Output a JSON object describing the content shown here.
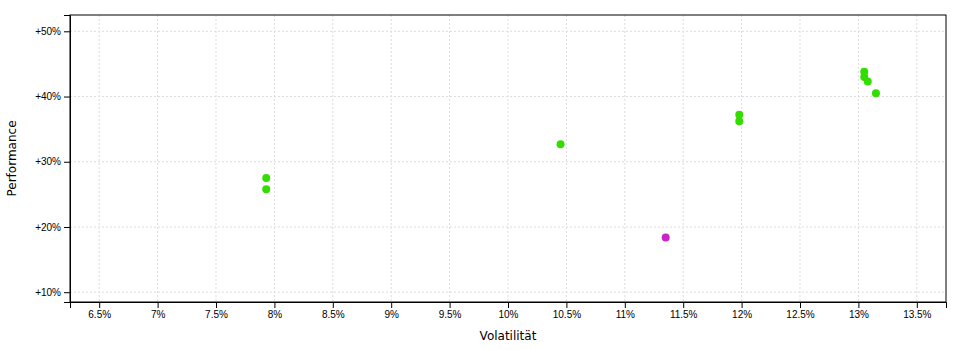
{
  "chart_data": {
    "type": "scatter",
    "xlabel": "Volatilität",
    "ylabel": "Performance",
    "xlim": [
      0.0625,
      0.1375
    ],
    "ylim": [
      0.085,
      0.525
    ],
    "xticks": [
      {
        "value": 0.065,
        "label": "6.5%"
      },
      {
        "value": 0.07,
        "label": "7%"
      },
      {
        "value": 0.075,
        "label": "7.5%"
      },
      {
        "value": 0.08,
        "label": "8%"
      },
      {
        "value": 0.085,
        "label": "8.5%"
      },
      {
        "value": 0.09,
        "label": "9%"
      },
      {
        "value": 0.095,
        "label": "9.5%"
      },
      {
        "value": 0.1,
        "label": "10%"
      },
      {
        "value": 0.105,
        "label": "10.5%"
      },
      {
        "value": 0.11,
        "label": "11%"
      },
      {
        "value": 0.115,
        "label": "11.5%"
      },
      {
        "value": 0.12,
        "label": "12%"
      },
      {
        "value": 0.125,
        "label": "12.5%"
      },
      {
        "value": 0.13,
        "label": "13%"
      },
      {
        "value": 0.135,
        "label": "13.5%"
      }
    ],
    "yticks": [
      {
        "value": 0.1,
        "label": "+10%"
      },
      {
        "value": 0.2,
        "label": "+20%"
      },
      {
        "value": 0.3,
        "label": "+30%"
      },
      {
        "value": 0.4,
        "label": "+40%"
      },
      {
        "value": 0.5,
        "label": "+50%"
      }
    ],
    "grid": true,
    "series": [
      {
        "color": "#33dd00",
        "x": [
          0.0793,
          0.0793,
          0.1045,
          0.1198,
          0.1198,
          0.1305,
          0.1305,
          0.1308,
          0.1315
        ],
        "values": [
          0.275,
          0.258,
          0.327,
          0.372,
          0.362,
          0.438,
          0.43,
          0.423,
          0.405
        ]
      },
      {
        "color": "#cc22cc",
        "x": [
          0.1135
        ],
        "values": [
          0.184
        ]
      }
    ]
  }
}
